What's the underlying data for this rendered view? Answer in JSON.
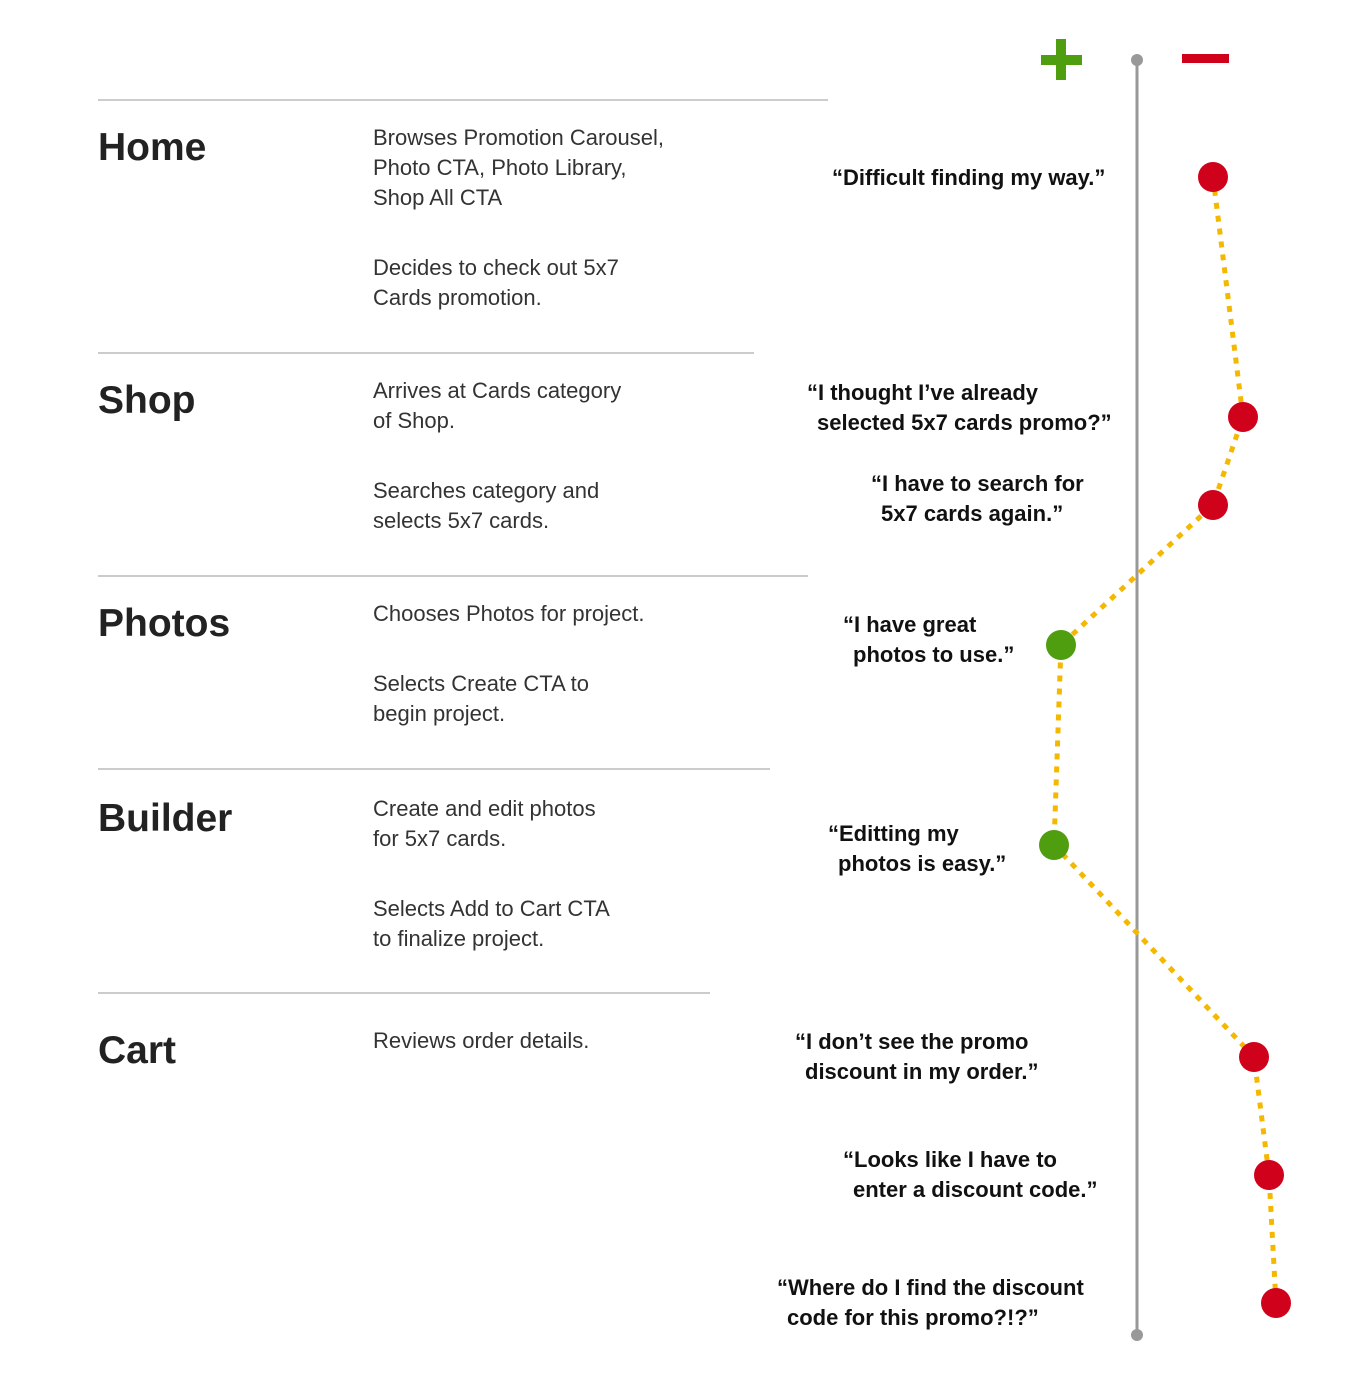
{
  "stages": [
    {
      "name": "Home",
      "steps": [
        [
          "Browses Promotion Carousel,",
          "Photo CTA, Photo Library,",
          "Shop All CTA"
        ],
        [
          "Decides to check out 5x7",
          "Cards promotion."
        ]
      ]
    },
    {
      "name": "Shop",
      "steps": [
        [
          "Arrives at Cards category",
          "of Shop."
        ],
        [
          "Searches category and",
          "selects 5x7 cards."
        ]
      ]
    },
    {
      "name": "Photos",
      "steps": [
        [
          "Chooses Photos for project."
        ],
        [
          "Selects Create CTA to",
          "begin project."
        ]
      ]
    },
    {
      "name": "Builder",
      "steps": [
        [
          "Create and edit photos",
          "for 5x7 cards."
        ],
        [
          "Selects Add to Cart CTA",
          "to finalize project."
        ]
      ]
    },
    {
      "name": "Cart",
      "steps": [
        [
          "Reviews order details."
        ]
      ]
    }
  ],
  "quotes": [
    [
      "“Difficult finding my way.”"
    ],
    [
      "“I thought I’ve already",
      "selected 5x7 cards promo?”"
    ],
    [
      "“I have to search for",
      "5x7 cards again.”"
    ],
    [
      "“I have great",
      "photos to use.”"
    ],
    [
      "“Editting my",
      "photos is easy.”"
    ],
    [
      "“I don’t see the promo",
      "discount in my order.”"
    ],
    [
      "“Looks like I have to",
      "enter a discount code.”"
    ],
    [
      "“Where do I find the discount",
      "code for this promo?!?”"
    ]
  ]
}
